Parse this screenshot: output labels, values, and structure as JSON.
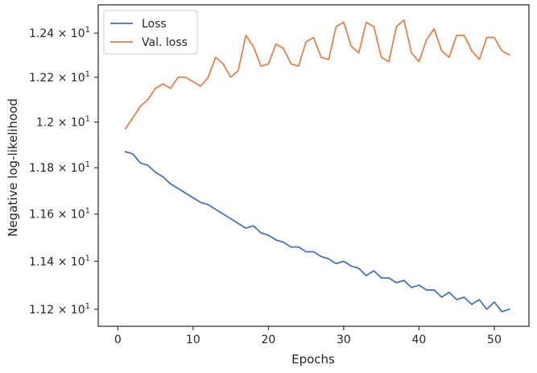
{
  "chart_data": {
    "type": "line",
    "title": "",
    "xlabel": "Epochs",
    "ylabel": "Negative log-likelihood",
    "yscale": "log",
    "xlim": [
      -2.6,
      54.6
    ],
    "ylim": [
      11.13,
      12.53
    ],
    "xticks": [
      0,
      10,
      20,
      30,
      40,
      50
    ],
    "xtick_labels": [
      "0",
      "10",
      "20",
      "30",
      "40",
      "50"
    ],
    "yticks": [
      11.2,
      11.4,
      11.6,
      11.8,
      12.0,
      12.2,
      12.4
    ],
    "ytick_labels": [
      {
        "mantissa": "1.12",
        "sep": " × 10",
        "exp": "1"
      },
      {
        "mantissa": "1.14",
        "sep": " × 10",
        "exp": "1"
      },
      {
        "mantissa": "1.16",
        "sep": " × 10",
        "exp": "1"
      },
      {
        "mantissa": "1.18",
        "sep": " × 10",
        "exp": "1"
      },
      {
        "mantissa": "1.2",
        "sep": " × 10",
        "exp": "1"
      },
      {
        "mantissa": "1.22",
        "sep": " × 10",
        "exp": "1"
      },
      {
        "mantissa": "1.24",
        "sep": " × 10",
        "exp": "1"
      }
    ],
    "grid": false,
    "legend": {
      "placement": "top-left"
    },
    "x": [
      1,
      2,
      3,
      4,
      5,
      6,
      7,
      8,
      9,
      10,
      11,
      12,
      13,
      14,
      15,
      16,
      17,
      18,
      19,
      20,
      21,
      22,
      23,
      24,
      25,
      26,
      27,
      28,
      29,
      30,
      31,
      32,
      33,
      34,
      35,
      36,
      37,
      38,
      39,
      40,
      41,
      42,
      43,
      44,
      45,
      46,
      47,
      48,
      49,
      50,
      51,
      52
    ],
    "series": [
      {
        "name": "Loss",
        "color": "#4c72b0",
        "values": [
          11.87,
          11.86,
          11.82,
          11.81,
          11.78,
          11.76,
          11.73,
          11.71,
          11.69,
          11.67,
          11.65,
          11.64,
          11.62,
          11.6,
          11.58,
          11.56,
          11.54,
          11.55,
          11.52,
          11.51,
          11.49,
          11.48,
          11.46,
          11.46,
          11.44,
          11.44,
          11.42,
          11.41,
          11.39,
          11.4,
          11.38,
          11.37,
          11.34,
          11.36,
          11.33,
          11.33,
          11.31,
          11.32,
          11.29,
          11.3,
          11.28,
          11.28,
          11.25,
          11.27,
          11.24,
          11.25,
          11.22,
          11.24,
          11.2,
          11.23,
          11.19,
          11.2
        ]
      },
      {
        "name": "Val. loss",
        "color": "#dd8452",
        "values": [
          11.97,
          12.02,
          12.07,
          12.1,
          12.15,
          12.17,
          12.15,
          12.2,
          12.2,
          12.18,
          12.16,
          12.2,
          12.29,
          12.26,
          12.2,
          12.23,
          12.39,
          12.34,
          12.25,
          12.26,
          12.35,
          12.33,
          12.26,
          12.25,
          12.36,
          12.38,
          12.29,
          12.28,
          12.43,
          12.45,
          12.34,
          12.31,
          12.45,
          12.43,
          12.29,
          12.27,
          12.43,
          12.46,
          12.31,
          12.27,
          12.37,
          12.42,
          12.32,
          12.29,
          12.39,
          12.39,
          12.32,
          12.28,
          12.38,
          12.38,
          12.32,
          12.3
        ]
      }
    ]
  }
}
